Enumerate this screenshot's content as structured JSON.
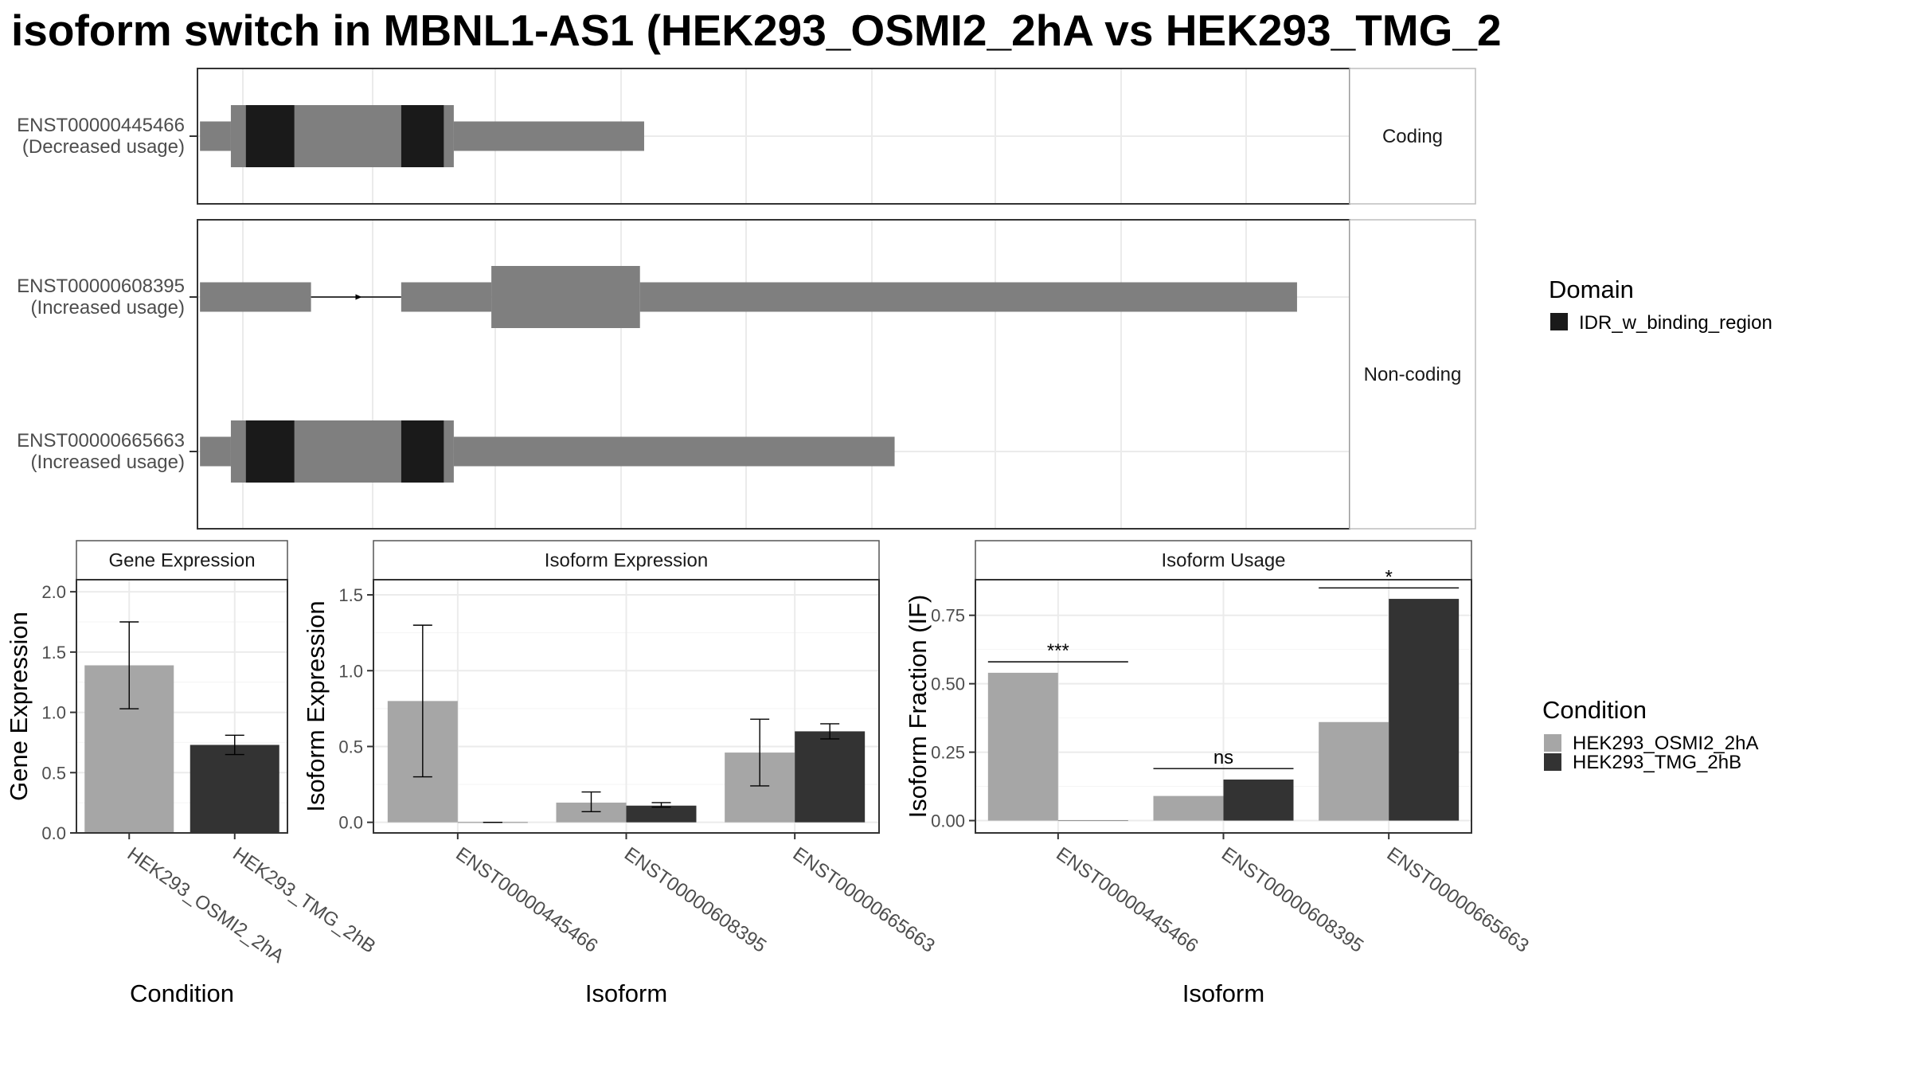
{
  "title": "isoform switch in MBNL1-AS1 (HEK293_OSMI2_2hA vs HEK293_TMG_2",
  "colors": {
    "exon": "#7f7f7f",
    "domain": "#1a1a1a",
    "cond1": "#a6a6a6",
    "cond2": "#333333",
    "grid": "#ebebeb",
    "border": "#333333",
    "strip": "#ffffff"
  },
  "transcripts": {
    "panels": [
      {
        "label": "Coding",
        "rows": [
          {
            "id": "ENST00000445466",
            "usage": "(Decreased usage)",
            "blocks": [
              {
                "start": 3,
                "end": 40,
                "kind": "utr"
              },
              {
                "start": 40,
                "end": 244,
                "kind": "cds"
              },
              {
                "start": 244,
                "end": 307,
                "kind": "cds"
              },
              {
                "start": 307,
                "end": 535,
                "kind": "utr"
              }
            ],
            "domains": [
              {
                "start": 58,
                "end": 116
              },
              {
                "start": 244,
                "end": 295
              }
            ],
            "intron_arrows": [
              174,
              218
            ]
          }
        ]
      },
      {
        "label": "Non-coding",
        "rows": [
          {
            "id": "ENST00000608395",
            "usage": "(Increased usage)",
            "blocks": [
              {
                "start": 3,
                "end": 136,
                "kind": "utr"
              },
              {
                "start": 244,
                "end": 352,
                "kind": "utr"
              },
              {
                "start": 352,
                "end": 530,
                "kind": "cds"
              },
              {
                "start": 530,
                "end": 1317,
                "kind": "utr"
              }
            ],
            "domains": [],
            "intron_arrows": [
              195
            ]
          },
          {
            "id": "ENST00000665663",
            "usage": "(Increased usage)",
            "blocks": [
              {
                "start": 3,
                "end": 40,
                "kind": "utr"
              },
              {
                "start": 40,
                "end": 244,
                "kind": "cds"
              },
              {
                "start": 244,
                "end": 307,
                "kind": "cds"
              },
              {
                "start": 307,
                "end": 835,
                "kind": "utr"
              }
            ],
            "domains": [
              {
                "start": 58,
                "end": 116
              },
              {
                "start": 244,
                "end": 295
              }
            ],
            "intron_arrows": [
              174,
              218
            ]
          }
        ]
      }
    ],
    "domain_legend": {
      "title": "Domain",
      "items": [
        "IDR_w_binding_region"
      ]
    }
  },
  "chart_data": [
    {
      "type": "bar",
      "title": "Gene Expression",
      "xlabel": "Condition",
      "ylabel": "Gene Expression",
      "ylim": [
        0,
        2.1
      ],
      "yticks": [
        0.0,
        0.5,
        1.0,
        1.5,
        2.0
      ],
      "ytick_labels": [
        "0.0",
        "0.5",
        "1.0",
        "1.5",
        "2.0"
      ],
      "categories": [
        "HEK293_OSMI2_2hA",
        "HEK293_TMG_2hB"
      ],
      "bars": [
        {
          "category": "HEK293_OSMI2_2hA",
          "condition": 0,
          "value": 1.39,
          "err_low": 1.03,
          "err_high": 1.75
        },
        {
          "category": "HEK293_TMG_2hB",
          "condition": 1,
          "value": 0.73,
          "err_low": 0.65,
          "err_high": 0.81
        }
      ],
      "annotations": []
    },
    {
      "type": "bar",
      "title": "Isoform Expression",
      "xlabel": "Isoform",
      "ylabel": "Isoform Expression",
      "ylim": [
        -0.07,
        1.6
      ],
      "yticks": [
        0.0,
        0.5,
        1.0,
        1.5
      ],
      "ytick_labels": [
        "0.0",
        "0.5",
        "1.0",
        "1.5"
      ],
      "categories": [
        "ENST00000445466",
        "ENST00000608395",
        "ENST00000665663"
      ],
      "series": [
        {
          "name": "HEK293_OSMI2_2hA",
          "values": [
            0.8,
            0.13,
            0.46
          ],
          "err_low": [
            0.3,
            0.07,
            0.24
          ],
          "err_high": [
            1.3,
            0.2,
            0.68
          ]
        },
        {
          "name": "HEK293_TMG_2hB",
          "values": [
            0.0,
            0.11,
            0.6
          ],
          "err_low": [
            0.0,
            0.1,
            0.55
          ],
          "err_high": [
            0.0,
            0.13,
            0.65
          ]
        }
      ],
      "annotations": []
    },
    {
      "type": "bar",
      "title": "Isoform Usage",
      "xlabel": "Isoform",
      "ylabel": "Isoform Fraction (IF)",
      "ylim": [
        -0.045,
        0.88
      ],
      "yticks": [
        0.0,
        0.25,
        0.5,
        0.75
      ],
      "ytick_labels": [
        "0.00",
        "0.25",
        "0.50",
        "0.75"
      ],
      "categories": [
        "ENST00000445466",
        "ENST00000608395",
        "ENST00000665663"
      ],
      "series": [
        {
          "name": "HEK293_OSMI2_2hA",
          "values": [
            0.54,
            0.09,
            0.36
          ]
        },
        {
          "name": "HEK293_TMG_2hB",
          "values": [
            0.0,
            0.15,
            0.81
          ]
        }
      ],
      "annotations": [
        {
          "category": "ENST00000445466",
          "label": "***",
          "y": 0.58
        },
        {
          "category": "ENST00000608395",
          "label": "ns",
          "y": 0.19
        },
        {
          "category": "ENST00000665663",
          "label": "*",
          "y": 0.85
        }
      ]
    }
  ],
  "condition_legend": {
    "title": "Condition",
    "items": [
      "HEK293_OSMI2_2hA",
      "HEK293_TMG_2hB"
    ]
  }
}
